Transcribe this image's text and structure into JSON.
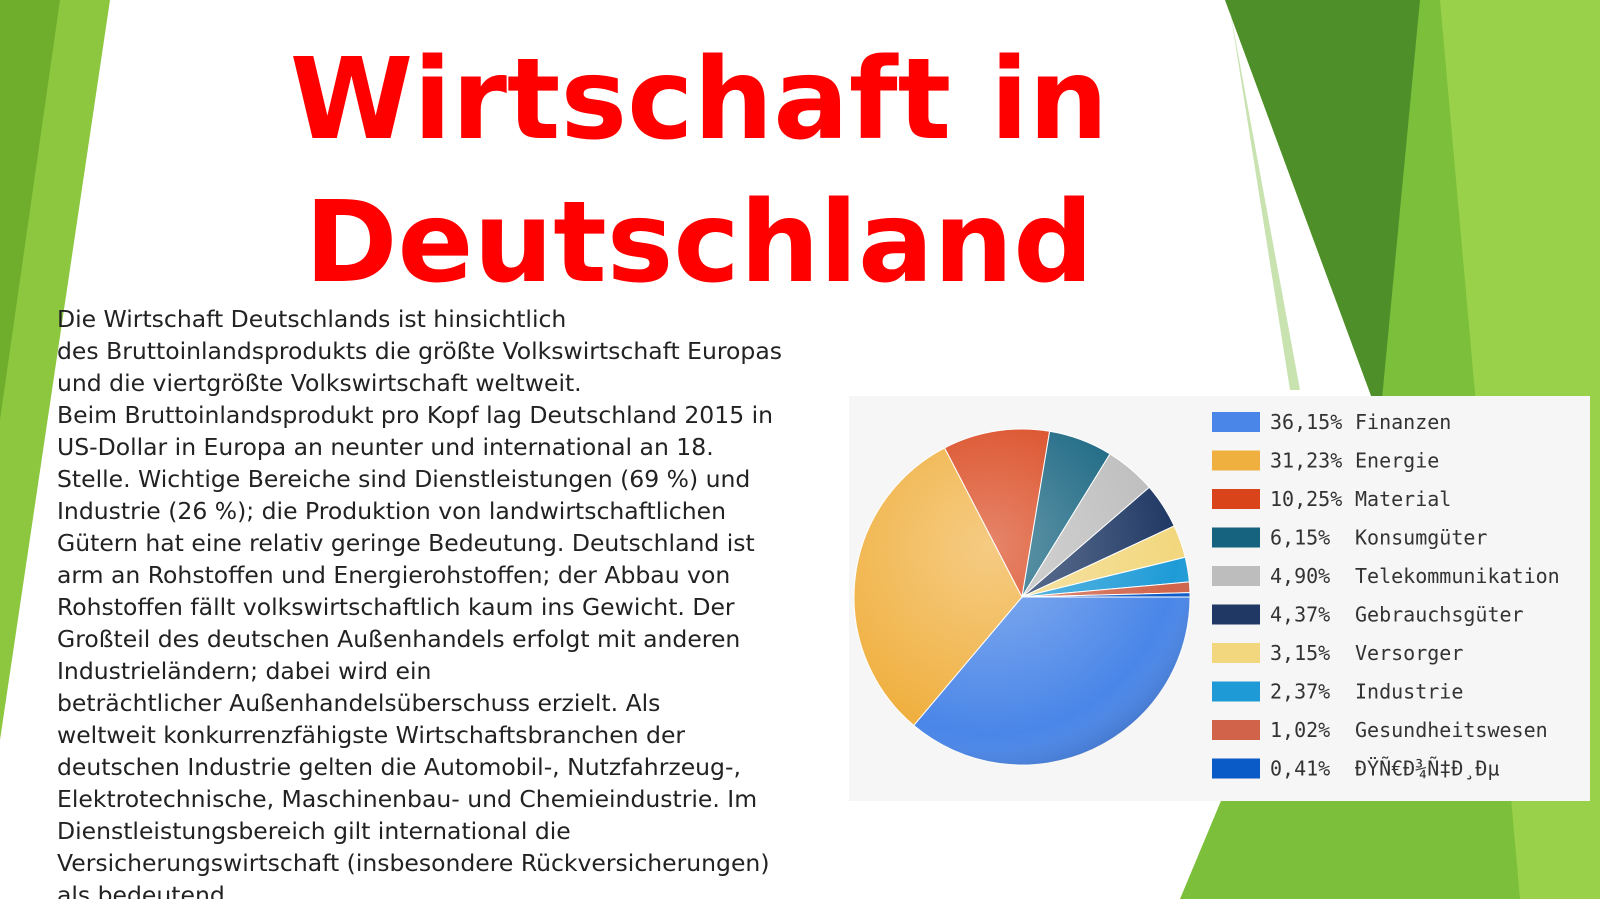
{
  "header": {
    "title_lines": [
      "Wirtschaft in",
      "Deutschland"
    ]
  },
  "body": {
    "lines": [
      "Die Wirtschaft Deutschlands ist hinsichtlich",
      "des Bruttoinlandsprodukts die größte Volkswirtschaft Europas",
      "und die viertgrößte Volkswirtschaft weltweit.",
      "Beim Bruttoinlandsprodukt pro Kopf lag Deutschland 2015 in",
      "US-Dollar in Europa an neunter und international an 18.",
      "Stelle. Wichtige Bereiche sind Dienstleistungen (69 %) und",
      "Industrie (26 %); die Produktion von landwirtschaftlichen",
      "Gütern hat eine relativ geringe Bedeutung. Deutschland ist",
      "arm an Rohstoffen und Energierohstoffen; der Abbau von",
      "Rohstoffen fällt volkswirtschaftlich kaum ins Gewicht. Der",
      "Großteil des deutschen Außenhandels erfolgt mit anderen",
      "Industrieländern; dabei wird ein",
      "beträchtlicher Außenhandelsüberschuss erzielt. Als",
      "weltweit konkurrenzfähigste Wirtschaftsbranchen der",
      "deutschen Industrie gelten die Automobil-, Nutzfahrzeug-,",
      "Elektrotechnische, Maschinenbau- und Chemieindustrie. Im",
      "Dienstleistungsbereich gilt international die",
      "Versicherungswirtschaft (insbesondere Rückversicherungen)",
      "als bedeutend."
    ]
  },
  "chart_data": {
    "type": "pie",
    "categories": [
      "Finanzen",
      "Energie",
      "Material",
      "Konsumgüter",
      "Telekommunikation",
      "Gebrauchsgüter",
      "Versorger",
      "Industrie",
      "Gesundheitswesen",
      "ÐŸÑ€Ð¾Ñ‡Ð¸Ðµ"
    ],
    "values": [
      36.15,
      31.23,
      10.25,
      6.15,
      4.9,
      4.37,
      3.15,
      2.37,
      1.02,
      0.41
    ],
    "value_labels": [
      "36,15%",
      "31,23%",
      "10,25%",
      "6,15%",
      "4,90%",
      "4,37%",
      "3,15%",
      "2,37%",
      "1,02%",
      "0,41%"
    ],
    "colors": [
      "#4a86e8",
      "#f0b040",
      "#d9441a",
      "#15637f",
      "#bdbdbd",
      "#1f3864",
      "#f2d77e",
      "#1e9bd7",
      "#d0634a",
      "#0a5ac8"
    ]
  }
}
